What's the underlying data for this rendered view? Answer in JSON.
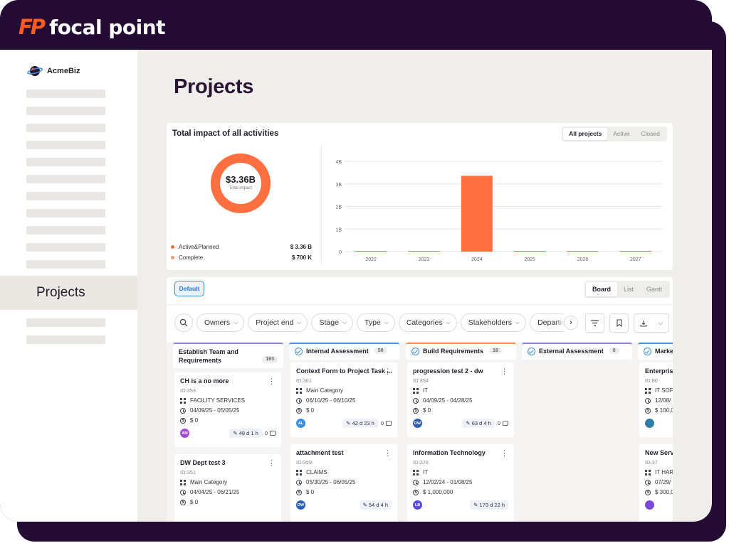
{
  "brand": {
    "mark": "FP",
    "name": "focal point",
    "accent": "#ff5a1f",
    "frame_color": "#240b33"
  },
  "sidebar": {
    "org_name": "AcmeBiz",
    "active_item": "Projects"
  },
  "page": {
    "title": "Projects"
  },
  "impact": {
    "title": "Total impact of all activities",
    "filters": [
      "All projects",
      "Active",
      "Closed"
    ],
    "active_filter": "All projects",
    "donut": {
      "value": "$3.36B",
      "label": "Total impact",
      "color": "#ff6f3f"
    },
    "legend": [
      {
        "label": "Active&Planned",
        "value": "$ 3.36 B",
        "color": "#ff6f3f"
      },
      {
        "label": "Complete",
        "value": "$ 700 K",
        "color": "#ff9a6a"
      }
    ]
  },
  "chart_data": {
    "type": "bar",
    "categories": [
      "2022",
      "2023",
      "2024",
      "2025",
      "2026",
      "2027"
    ],
    "values": [
      0,
      0,
      3.36,
      0,
      0,
      0
    ],
    "y_ticks": [
      "0",
      "1B",
      "2B",
      "3B",
      "4B"
    ],
    "ylim": [
      0,
      4
    ],
    "color": "#ff6f3f",
    "grid": true
  },
  "board": {
    "default_label": "Default",
    "views": [
      "Board",
      "List",
      "Gantt"
    ],
    "active_view": "Board",
    "filters": [
      "Owners",
      "Project end",
      "Stage",
      "Type",
      "Categories",
      "Stakeholders",
      "Departme"
    ],
    "columns": [
      {
        "title": "Establish Team and Requirements",
        "count": "163",
        "color": "#8a7fd6",
        "status_icon": false,
        "tasks": [
          {
            "title": "CH is a no more",
            "id": "ID:353",
            "category": "FACILITY SERVICES",
            "dates": "04/09/25 - 05/05/25",
            "amount": "$ 0",
            "avatar": "AM",
            "avatar_color": "#a24bd8",
            "duration": "48 d 1 h",
            "comments": "0"
          },
          {
            "title": "DW Dept test 3",
            "id": "ID:351",
            "category": "Main Category",
            "dates": "04/04/25 - 06/21/25",
            "amount": "$ 0",
            "avatar": "",
            "avatar_color": "#5a4bd8",
            "duration": "",
            "comments": ""
          }
        ]
      },
      {
        "title": "Internal Assessment",
        "count": "50",
        "color": "#3b8fe0",
        "status_icon": true,
        "tasks": [
          {
            "title": "Context Form to Project Task ...",
            "id": "ID:361",
            "category": "Main Category",
            "dates": "06/10/25 - 06/10/25",
            "amount": "$ 0",
            "avatar": "AL",
            "avatar_color": "#3b8fe0",
            "duration": "42 d 23 h",
            "comments": "0"
          },
          {
            "title": "attachment test",
            "id": "ID:359",
            "category": "CLAIMS",
            "dates": "05/30/25 - 06/05/25",
            "amount": "$ 0",
            "avatar": "DW",
            "avatar_color": "#2d5fb8",
            "duration": "54 d 4 h",
            "comments": ""
          }
        ]
      },
      {
        "title": "Build Requirements",
        "count": "18",
        "color": "#ff8a3d",
        "status_icon": true,
        "tasks": [
          {
            "title": "progression test 2 - dw",
            "id": "ID:354",
            "category": "IT",
            "dates": "04/09/25 - 04/28/25",
            "amount": "$ 0",
            "avatar": "DW",
            "avatar_color": "#2d5fb8",
            "duration": "63 d 4 h",
            "comments": "0"
          },
          {
            "title": "Information Technology",
            "id": "ID:276",
            "category": "IT",
            "dates": "12/02/24 - 01/08/25",
            "amount": "$ 1,000,000",
            "avatar": "LB",
            "avatar_color": "#5a4bd8",
            "duration": "173 d 22 h",
            "comments": ""
          }
        ]
      },
      {
        "title": "External Assessment",
        "count": "0",
        "color": "#8a7fd6",
        "status_icon": true,
        "tasks": []
      },
      {
        "title": "Marke",
        "count": "",
        "color": "#3b8fe0",
        "status_icon": true,
        "tasks": [
          {
            "title": "Enterprise",
            "id": "ID:80",
            "category": "IT SOFT",
            "dates": "12/08/",
            "amount": "$ 100,0",
            "avatar": "",
            "avatar_color": "#2d7fa8",
            "duration": "",
            "comments": ""
          },
          {
            "title": "New Serve",
            "id": "ID:37",
            "category": "IT HARD",
            "dates": "07/29/",
            "amount": "$ 300,0",
            "avatar": "",
            "avatar_color": "#7a4bd8",
            "duration": "",
            "comments": ""
          }
        ]
      }
    ]
  }
}
